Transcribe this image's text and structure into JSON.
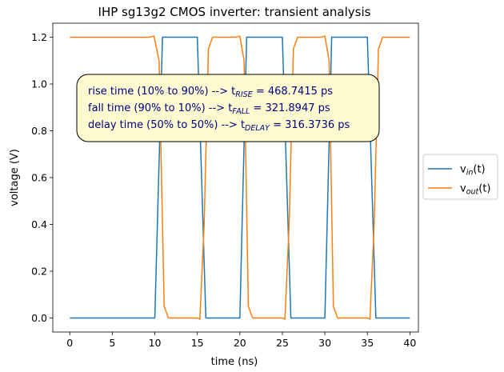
{
  "chart_data": {
    "type": "line",
    "title": "IHP sg13g2 CMOS inverter: transient analysis",
    "xlabel": "time (ns)",
    "ylabel": "voltage (V)",
    "xlim": [
      -2,
      41
    ],
    "ylim": [
      -0.06,
      1.26
    ],
    "xticks": [
      0,
      5,
      10,
      15,
      20,
      25,
      30,
      35,
      40
    ],
    "yticks": [
      0.0,
      0.2,
      0.4,
      0.6,
      0.8,
      1.0,
      1.2
    ],
    "xtick_labels": [
      "0",
      "5",
      "10",
      "15",
      "20",
      "25",
      "30",
      "35",
      "40"
    ],
    "ytick_labels": [
      "0.0",
      "0.2",
      "0.4",
      "0.6",
      "0.8",
      "1.0",
      "1.2"
    ],
    "grid": false,
    "legend_position": "outside-right",
    "series": [
      {
        "name": "v_in(t)",
        "legend_main": "v",
        "legend_sub": "in",
        "legend_tail": "(t)",
        "color": "#1f77b4",
        "points": [
          [
            0,
            0
          ],
          [
            10,
            0
          ],
          [
            10.9,
            1.2
          ],
          [
            15,
            1.2
          ],
          [
            16,
            0
          ],
          [
            20,
            0
          ],
          [
            20.8,
            1.2
          ],
          [
            25,
            1.2
          ],
          [
            26,
            0
          ],
          [
            30,
            0
          ],
          [
            30.8,
            1.2
          ],
          [
            35,
            1.2
          ],
          [
            36,
            0
          ],
          [
            40,
            0
          ]
        ]
      },
      {
        "name": "v_out(t)",
        "legend_main": "v",
        "legend_sub": "out",
        "legend_tail": "(t)",
        "color": "#ff7f0e",
        "points": [
          [
            0,
            1.2
          ],
          [
            9.4,
            1.2
          ],
          [
            9.9,
            1.205
          ],
          [
            10.5,
            1.1
          ],
          [
            11.1,
            0.05
          ],
          [
            11.6,
            0
          ],
          [
            15,
            0
          ],
          [
            15.3,
            -0.005
          ],
          [
            15.8,
            0.4
          ],
          [
            16.3,
            1.15
          ],
          [
            16.8,
            1.2
          ],
          [
            19.5,
            1.2
          ],
          [
            20,
            1.205
          ],
          [
            20.5,
            1.1
          ],
          [
            21,
            0.05
          ],
          [
            21.5,
            0
          ],
          [
            25,
            0
          ],
          [
            25.3,
            -0.005
          ],
          [
            25.8,
            0.4
          ],
          [
            26.3,
            1.15
          ],
          [
            26.8,
            1.2
          ],
          [
            29.5,
            1.2
          ],
          [
            30,
            1.205
          ],
          [
            30.5,
            1.1
          ],
          [
            31,
            0.05
          ],
          [
            31.5,
            0
          ],
          [
            35,
            0
          ],
          [
            35.3,
            -0.005
          ],
          [
            35.8,
            0.4
          ],
          [
            36.3,
            1.15
          ],
          [
            36.8,
            1.2
          ],
          [
            40,
            1.2
          ]
        ]
      }
    ],
    "annotation": {
      "lines": [
        {
          "pre": "rise time (10% to 90%) --> t",
          "sub": "RISE",
          "post": " = 468.7415 ps"
        },
        {
          "pre": "fall time (90% to 10%) --> t",
          "sub": "FALL",
          "post": " = 321.8947 ps"
        },
        {
          "pre": "delay time (50% to 50%) --> t",
          "sub": "DELAY",
          "post": " = 316.3736 ps"
        }
      ],
      "background": "#fdfad0",
      "text_color": "#000080"
    }
  }
}
